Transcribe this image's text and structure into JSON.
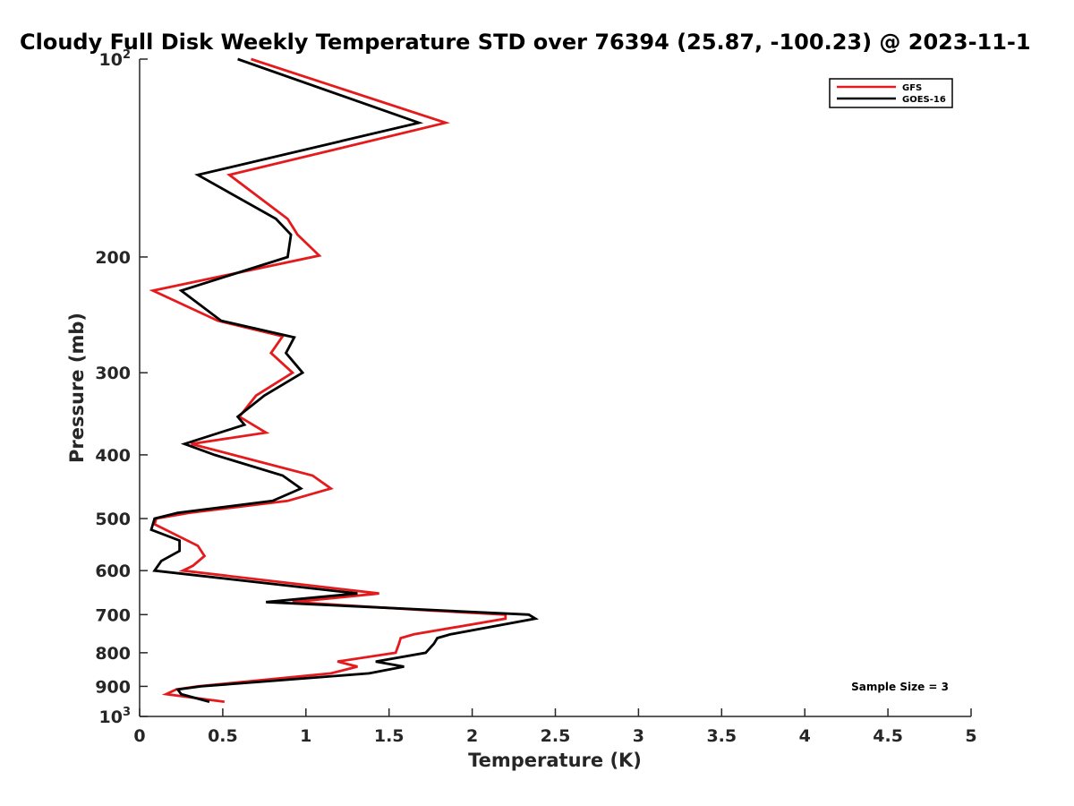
{
  "chart_data": {
    "type": "line",
    "title": "Cloudy Full Disk Weekly Temperature STD over 76394 (25.87, -100.23) @ 2023-11-1",
    "xlabel": "Temperature (K)",
    "ylabel": "Pressure (mb)",
    "xlim": [
      0,
      5
    ],
    "ylim": [
      1000,
      100
    ],
    "y_scale": "log",
    "y_reversed": true,
    "x_ticks": [
      0,
      0.5,
      1,
      1.5,
      2,
      2.5,
      3,
      3.5,
      4,
      4.5,
      5
    ],
    "x_tick_labels": [
      "0",
      "0.5",
      "1",
      "1.5",
      "2",
      "2.5",
      "3",
      "3.5",
      "4",
      "4.5",
      "5"
    ],
    "y_ticks": [
      {
        "value": 100,
        "base": "10",
        "exp": "2"
      },
      {
        "value": 200,
        "label": "200"
      },
      {
        "value": 300,
        "label": "300"
      },
      {
        "value": 400,
        "label": "400"
      },
      {
        "value": 500,
        "label": "500"
      },
      {
        "value": 600,
        "label": "600"
      },
      {
        "value": 700,
        "label": "700"
      },
      {
        "value": 800,
        "label": "800"
      },
      {
        "value": 900,
        "label": "900"
      },
      {
        "value": 1000,
        "base": "10",
        "exp": "3"
      }
    ],
    "legend_position": "top-right",
    "grid": false,
    "annotation": "Sample Size = 3",
    "series": [
      {
        "name": "GFS",
        "color": "#e41a1c",
        "points": [
          [
            0.67,
            100
          ],
          [
            1.84,
            125
          ],
          [
            0.54,
            150
          ],
          [
            0.89,
            175
          ],
          [
            0.95,
            185
          ],
          [
            1.08,
            199
          ],
          [
            0.08,
            225
          ],
          [
            0.47,
            250
          ],
          [
            0.86,
            264
          ],
          [
            0.79,
            280
          ],
          [
            0.92,
            300
          ],
          [
            0.7,
            325
          ],
          [
            0.6,
            350
          ],
          [
            0.76,
            370
          ],
          [
            0.31,
            385
          ],
          [
            1.04,
            430
          ],
          [
            1.15,
            450
          ],
          [
            0.89,
            470
          ],
          [
            0.3,
            490
          ],
          [
            0.1,
            500
          ],
          [
            0.09,
            510
          ],
          [
            0.35,
            550
          ],
          [
            0.39,
            570
          ],
          [
            0.32,
            590
          ],
          [
            0.26,
            600
          ],
          [
            1.44,
            650
          ],
          [
            0.92,
            670
          ],
          [
            1.75,
            690
          ],
          [
            2.2,
            700
          ],
          [
            2.2,
            710
          ],
          [
            1.65,
            750
          ],
          [
            1.57,
            760
          ],
          [
            1.56,
            775
          ],
          [
            1.54,
            800
          ],
          [
            1.19,
            825
          ],
          [
            1.31,
            840
          ],
          [
            1.15,
            860
          ],
          [
            0.35,
            900
          ],
          [
            0.22,
            910
          ],
          [
            0.16,
            925
          ],
          [
            0.51,
            950
          ]
        ]
      },
      {
        "name": "GOES-16",
        "color": "#000000",
        "points": [
          [
            0.59,
            100
          ],
          [
            1.68,
            125
          ],
          [
            0.35,
            150
          ],
          [
            0.82,
            175
          ],
          [
            0.91,
            185
          ],
          [
            0.89,
            200
          ],
          [
            0.25,
            225
          ],
          [
            0.49,
            250
          ],
          [
            0.93,
            265
          ],
          [
            0.88,
            280
          ],
          [
            0.98,
            300
          ],
          [
            0.75,
            325
          ],
          [
            0.59,
            350
          ],
          [
            0.63,
            360
          ],
          [
            0.27,
            385
          ],
          [
            0.45,
            400
          ],
          [
            0.86,
            430
          ],
          [
            0.97,
            450
          ],
          [
            0.8,
            470
          ],
          [
            0.23,
            490
          ],
          [
            0.09,
            500
          ],
          [
            0.07,
            520
          ],
          [
            0.24,
            540
          ],
          [
            0.24,
            560
          ],
          [
            0.13,
            580
          ],
          [
            0.09,
            600
          ],
          [
            1.31,
            650
          ],
          [
            0.76,
            670
          ],
          [
            2.34,
            700
          ],
          [
            2.38,
            710
          ],
          [
            1.87,
            750
          ],
          [
            1.79,
            760
          ],
          [
            1.77,
            775
          ],
          [
            1.72,
            800
          ],
          [
            1.42,
            825
          ],
          [
            1.59,
            840
          ],
          [
            1.38,
            860
          ],
          [
            0.37,
            900
          ],
          [
            0.23,
            910
          ],
          [
            0.25,
            925
          ],
          [
            0.42,
            950
          ]
        ]
      }
    ]
  }
}
